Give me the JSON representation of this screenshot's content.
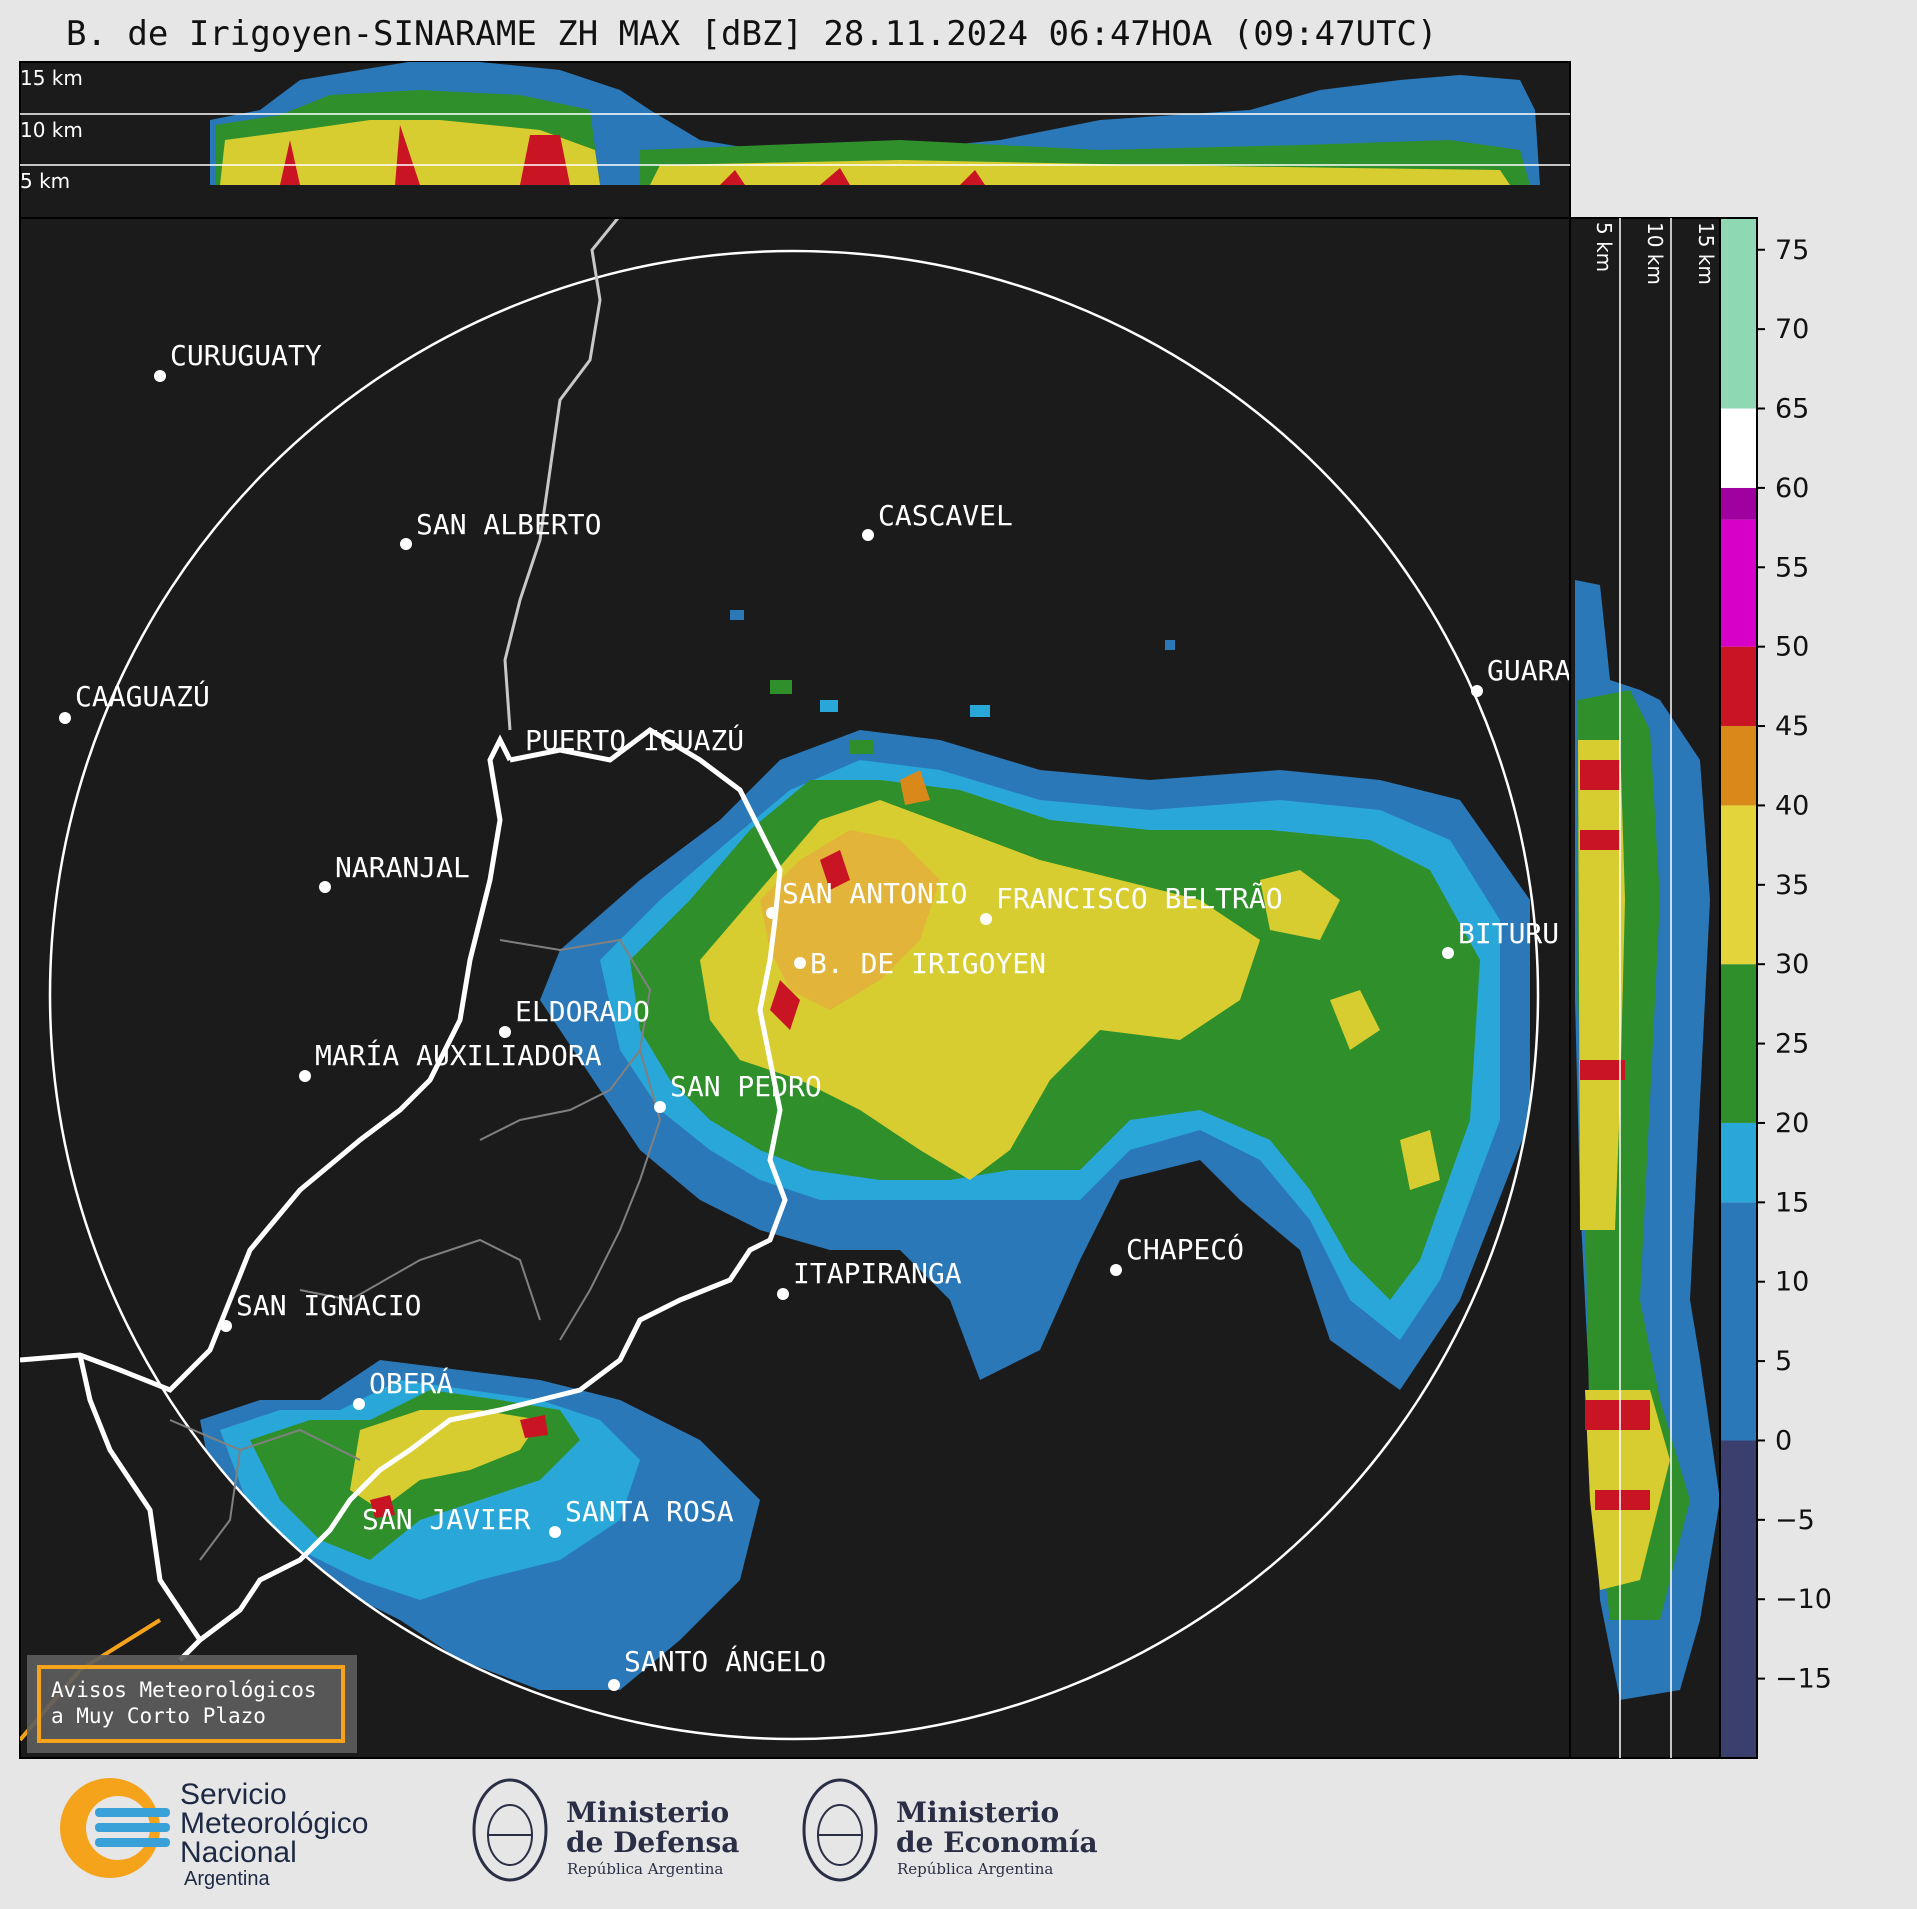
{
  "title": "B. de Irigoyen-SINARAME ZH MAX [dBZ] 28.11.2024 06:47HOA (09:47UTC)",
  "top_panel": {
    "altitude_labels": [
      "15 km",
      "10 km",
      "5 km"
    ]
  },
  "side_panel": {
    "altitude_labels": [
      "5 km",
      "10 km",
      "15 km"
    ]
  },
  "colorbar": {
    "ticks": [
      "75",
      "70",
      "65",
      "60",
      "55",
      "50",
      "45",
      "40",
      "35",
      "30",
      "25",
      "20",
      "15",
      "10",
      "5",
      "0",
      "−5",
      "−10",
      "−15"
    ],
    "range_dbz": [
      -20,
      77
    ],
    "colors": {
      "below_0": "#3a3f6e",
      "0_15": "#2a78b8",
      "15_20": "#29a7d8",
      "20_30": "#2f8f2a",
      "30_40": "#e2d43a",
      "40_45": "#d9891a",
      "45_50": "#c81423",
      "50_58": "#d600c8",
      "58_60": "#a000a0",
      "60_65": "#ffffff",
      "65_77": "#8ed9b4"
    }
  },
  "cities": [
    {
      "name": "CURUGUATY"
    },
    {
      "name": "SAN ALBERTO"
    },
    {
      "name": "CASCAVEL"
    },
    {
      "name": "CAAGUAZÚ"
    },
    {
      "name": "GUARA"
    },
    {
      "name": "PUERTO IGUAZÚ"
    },
    {
      "name": "NARANJAL"
    },
    {
      "name": "SAN ANTONIO"
    },
    {
      "name": "FRANCISCO BELTRÃO"
    },
    {
      "name": "BITURU"
    },
    {
      "name": "B. DE IRIGOYEN"
    },
    {
      "name": "ELDORADO"
    },
    {
      "name": "MARÍA AUXILIADORA"
    },
    {
      "name": "SAN PEDRO"
    },
    {
      "name": "CHAPECÓ"
    },
    {
      "name": "SAN IGNACIO"
    },
    {
      "name": "ITAPIRANGA"
    },
    {
      "name": "OBERÁ"
    },
    {
      "name": "SAN JAVIER"
    },
    {
      "name": "SANTA ROSA"
    },
    {
      "name": "SANTO ÁNGELO"
    }
  ],
  "notice": {
    "line1": "Avisos Meteorológicos",
    "line2": "a Muy Corto Plazo",
    "border_color": "#f5a31a"
  },
  "logos": {
    "smn": {
      "line1": "Servicio",
      "line2": "Meteorológico",
      "line3": "Nacional",
      "line4": "Argentina"
    },
    "defensa": {
      "line1": "Ministerio",
      "line2": "de Defensa",
      "line3": "República Argentina"
    },
    "economia": {
      "line1": "Ministerio",
      "line2": "de Economía",
      "line3": "República Argentina"
    }
  }
}
